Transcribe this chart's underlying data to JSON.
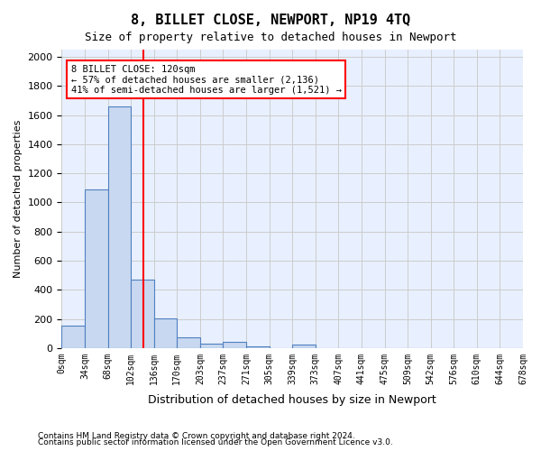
{
  "title": "8, BILLET CLOSE, NEWPORT, NP19 4TQ",
  "subtitle": "Size of property relative to detached houses in Newport",
  "xlabel": "Distribution of detached houses by size in Newport",
  "ylabel": "Number of detached properties",
  "bin_labels": [
    "0sqm",
    "34sqm",
    "68sqm",
    "102sqm",
    "136sqm",
    "170sqm",
    "203sqm",
    "237sqm",
    "271sqm",
    "305sqm",
    "339sqm",
    "373sqm",
    "407sqm",
    "441sqm",
    "475sqm",
    "509sqm",
    "542sqm",
    "576sqm",
    "610sqm",
    "644sqm",
    "678sqm"
  ],
  "bar_heights": [
    155,
    1090,
    1660,
    470,
    205,
    75,
    30,
    40,
    10,
    0,
    25,
    0,
    0,
    0,
    0,
    0,
    0,
    0,
    0,
    0
  ],
  "bar_color": "#c8d8f0",
  "bar_edge_color": "#5080c0",
  "property_sqm": 120,
  "property_bin_index": 3,
  "vline_color": "red",
  "annotation_text": "8 BILLET CLOSE: 120sqm\n← 57% of detached houses are smaller (2,136)\n41% of semi-detached houses are larger (1,521) →",
  "annotation_box_color": "red",
  "ylim": [
    0,
    2050
  ],
  "yticks": [
    0,
    200,
    400,
    600,
    800,
    1000,
    1200,
    1400,
    1600,
    1800,
    2000
  ],
  "grid_color": "#cccccc",
  "bg_color": "#e8f0ff",
  "footer_line1": "Contains HM Land Registry data © Crown copyright and database right 2024.",
  "footer_line2": "Contains public sector information licensed under the Open Government Licence v3.0."
}
